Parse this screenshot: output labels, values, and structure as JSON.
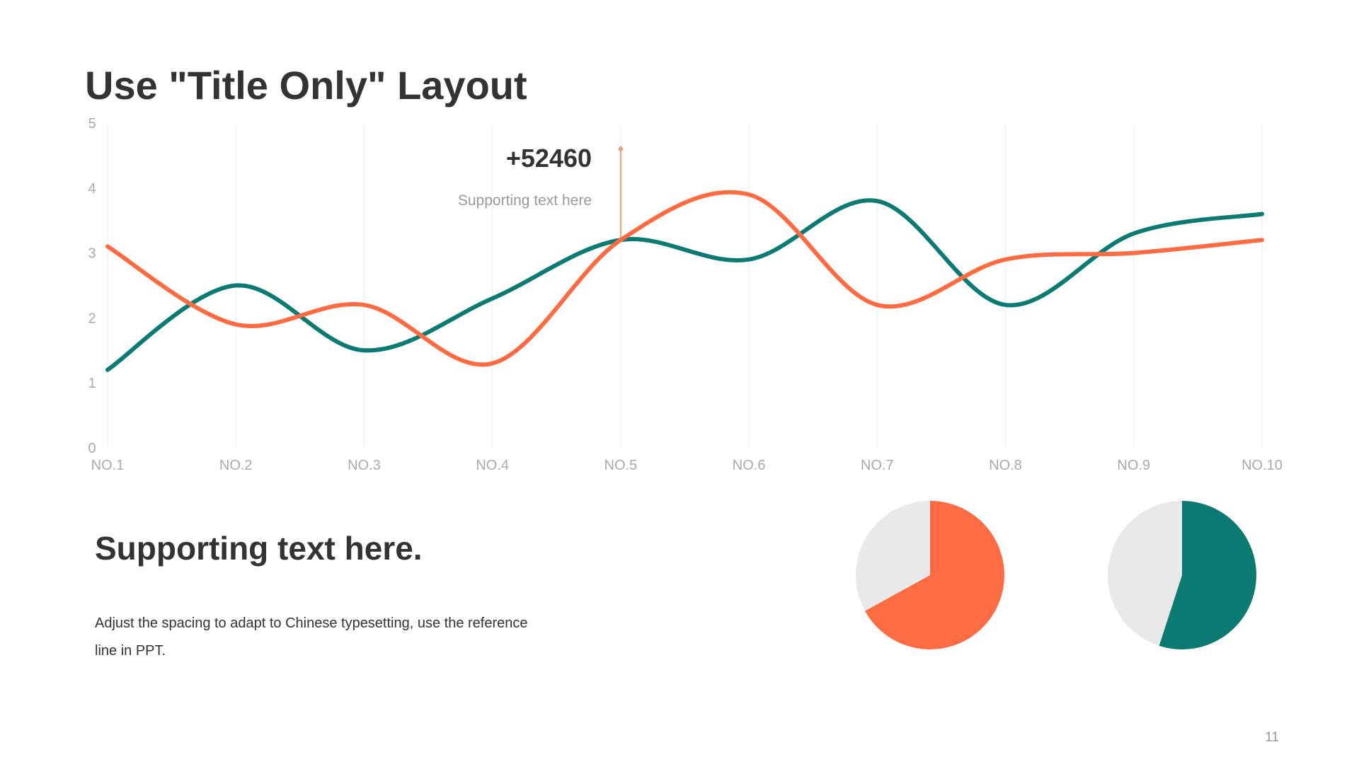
{
  "title": "Use \"Title Only\" Layout",
  "callout": {
    "value": "+52460",
    "text": "Supporting  text here"
  },
  "support": {
    "heading": "Supporting text here.",
    "body": "Adjust the spacing to adapt to Chinese typesetting, use the reference line in PPT."
  },
  "page_number": "11",
  "colors": {
    "orange": "#FF6B42",
    "teal": "#0A7A72",
    "pie_background": "#E9E9E9",
    "callout_marker": "#E8A47C"
  },
  "chart_data": [
    {
      "type": "line",
      "smooth": true,
      "categories": [
        "NO.1",
        "NO.2",
        "NO.3",
        "NO.4",
        "NO.5",
        "NO.6",
        "NO.7",
        "NO.8",
        "NO.9",
        "NO.10"
      ],
      "ylim": [
        0,
        5
      ],
      "yticks": [
        0,
        1,
        2,
        3,
        4,
        5
      ],
      "grid": "vertical",
      "series": [
        {
          "color": "#0A7A72",
          "values": [
            1.2,
            2.5,
            1.5,
            2.3,
            3.2,
            2.9,
            3.8,
            2.2,
            3.3,
            3.6
          ]
        },
        {
          "color": "#FF6B42",
          "values": [
            3.1,
            1.9,
            2.2,
            1.3,
            3.2,
            3.9,
            2.2,
            2.9,
            3.0,
            3.2
          ]
        }
      ],
      "annotation": {
        "category": "NO.5",
        "from_value": 3.2,
        "to_value": 4.6,
        "label": "+52460"
      }
    },
    {
      "type": "pie",
      "values": [
        67,
        33
      ],
      "colors": [
        "#FF6B42",
        "#E9E9E9"
      ]
    },
    {
      "type": "pie",
      "values": [
        55,
        45
      ],
      "colors": [
        "#0A7A72",
        "#E9E9E9"
      ]
    }
  ]
}
